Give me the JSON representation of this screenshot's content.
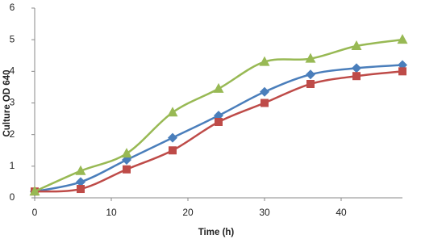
{
  "chart_data": {
    "type": "line",
    "x_label": "Time (h)",
    "y_label": "Culture OD 640",
    "x": [
      0,
      6,
      12,
      18,
      24,
      30,
      36,
      42,
      48
    ],
    "series": [
      {
        "color": "#4a7ebb",
        "marker": "diamond",
        "values": [
          0.2,
          0.5,
          1.2,
          1.9,
          2.6,
          3.35,
          3.9,
          4.1,
          4.2
        ]
      },
      {
        "color": "#be4b48",
        "marker": "square",
        "values": [
          0.2,
          0.28,
          0.9,
          1.5,
          2.4,
          3.0,
          3.6,
          3.85,
          4.0
        ]
      },
      {
        "color": "#98b954",
        "marker": "triangle",
        "values": [
          0.2,
          0.85,
          1.4,
          2.7,
          3.45,
          4.3,
          4.4,
          4.8,
          5.0
        ]
      }
    ],
    "xlim": [
      0,
      48
    ],
    "xticks": [
      0,
      10,
      20,
      30,
      40
    ],
    "ylim": [
      0,
      6
    ],
    "yticks": [
      0,
      1,
      2,
      3,
      4,
      5,
      6
    ],
    "grid": false,
    "smooth": true
  }
}
